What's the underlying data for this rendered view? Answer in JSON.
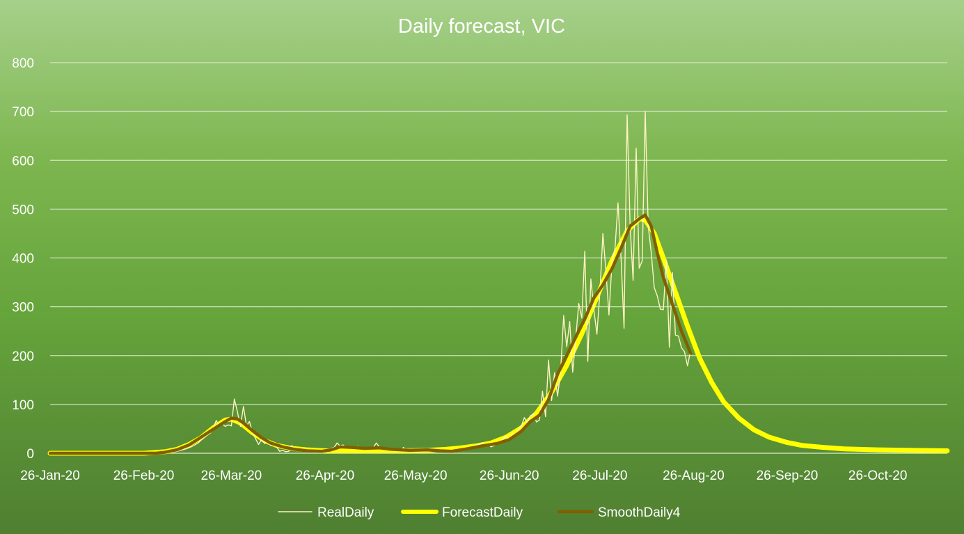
{
  "chart_data": {
    "type": "line",
    "title": "Daily forecast, VIC",
    "xlabel": "",
    "ylabel": "",
    "x_start": "26-Jan-20",
    "x_end": "18-Nov-20",
    "x_ticks": [
      "26-Jan-20",
      "26-Feb-20",
      "26-Mar-20",
      "26-Apr-20",
      "26-May-20",
      "26-Jun-20",
      "26-Jul-20",
      "26-Aug-20",
      "26-Sep-20",
      "26-Oct-20"
    ],
    "ylim": [
      0,
      800
    ],
    "y_ticks": [
      0,
      100,
      200,
      300,
      400,
      500,
      600,
      700,
      800
    ],
    "grid": true,
    "legend_position": "bottom",
    "series": [
      {
        "name": "RealDaily",
        "color": "#fff3c4",
        "points": [
          [
            "26-Jan-20",
            0
          ],
          [
            "20-Feb-20",
            0
          ],
          [
            "26-Feb-20",
            0
          ],
          [
            "01-Mar-20",
            1
          ],
          [
            "05-Mar-20",
            2
          ],
          [
            "08-Mar-20",
            4
          ],
          [
            "11-Mar-20",
            9
          ],
          [
            "13-Mar-20",
            14
          ],
          [
            "15-Mar-20",
            21
          ],
          [
            "17-Mar-20",
            33
          ],
          [
            "19-Mar-20",
            41
          ],
          [
            "20-Mar-20",
            52
          ],
          [
            "21-Mar-20",
            67
          ],
          [
            "22-Mar-20",
            56
          ],
          [
            "23-Mar-20",
            60
          ],
          [
            "24-Mar-20",
            55
          ],
          [
            "25-Mar-20",
            58
          ],
          [
            "26-Mar-20",
            56
          ],
          [
            "27-Mar-20",
            111
          ],
          [
            "28-Mar-20",
            85
          ],
          [
            "29-Mar-20",
            55
          ],
          [
            "30-Mar-20",
            96
          ],
          [
            "31-Mar-20",
            56
          ],
          [
            "01-Apr-20",
            65
          ],
          [
            "02-Apr-20",
            43
          ],
          [
            "03-Apr-20",
            30
          ],
          [
            "04-Apr-20",
            18
          ],
          [
            "05-Apr-20",
            28
          ],
          [
            "06-Apr-20",
            20
          ],
          [
            "07-Apr-20",
            26
          ],
          [
            "08-Apr-20",
            16
          ],
          [
            "09-Apr-20",
            20
          ],
          [
            "10-Apr-20",
            13
          ],
          [
            "11-Apr-20",
            4
          ],
          [
            "12-Apr-20",
            6
          ],
          [
            "13-Apr-20",
            3
          ],
          [
            "14-Apr-20",
            4
          ],
          [
            "15-Apr-20",
            16
          ],
          [
            "16-Apr-20",
            5
          ],
          [
            "17-Apr-20",
            10
          ],
          [
            "18-Apr-20",
            6
          ],
          [
            "19-Apr-20",
            4
          ],
          [
            "20-Apr-20",
            3
          ],
          [
            "21-Apr-20",
            4
          ],
          [
            "22-Apr-20",
            2
          ],
          [
            "23-Apr-20",
            3
          ],
          [
            "24-Apr-20",
            2
          ],
          [
            "25-Apr-20",
            3
          ],
          [
            "26-Apr-20",
            3
          ],
          [
            "27-Apr-20",
            6
          ],
          [
            "28-Apr-20",
            10
          ],
          [
            "29-Apr-20",
            12
          ],
          [
            "30-Apr-20",
            21
          ],
          [
            "01-May-20",
            15
          ],
          [
            "02-May-20",
            17
          ],
          [
            "03-May-20",
            12
          ],
          [
            "04-May-20",
            13
          ],
          [
            "05-May-20",
            9
          ],
          [
            "06-May-20",
            12
          ],
          [
            "07-May-20",
            14
          ],
          [
            "08-May-20",
            10
          ],
          [
            "09-May-20",
            11
          ],
          [
            "10-May-20",
            9
          ],
          [
            "11-May-20",
            10
          ],
          [
            "12-May-20",
            12
          ],
          [
            "13-May-20",
            21
          ],
          [
            "14-May-20",
            13
          ],
          [
            "15-May-20",
            7
          ],
          [
            "16-May-20",
            8
          ],
          [
            "17-May-20",
            6
          ],
          [
            "18-May-20",
            7
          ],
          [
            "19-May-20",
            5
          ],
          [
            "20-May-20",
            9
          ],
          [
            "21-May-20",
            6
          ],
          [
            "22-May-20",
            12
          ],
          [
            "23-May-20",
            5
          ],
          [
            "24-May-20",
            7
          ],
          [
            "25-May-20",
            6
          ],
          [
            "26-May-20",
            8
          ],
          [
            "27-May-20",
            7
          ],
          [
            "28-May-20",
            8
          ],
          [
            "29-May-20",
            6
          ],
          [
            "30-May-20",
            7
          ],
          [
            "31-May-20",
            9
          ],
          [
            "01-Jun-20",
            6
          ],
          [
            "02-Jun-20",
            7
          ],
          [
            "03-Jun-20",
            4
          ],
          [
            "04-Jun-20",
            6
          ],
          [
            "05-Jun-20",
            3
          ],
          [
            "06-Jun-20",
            5
          ],
          [
            "07-Jun-20",
            4
          ],
          [
            "08-Jun-20",
            6
          ],
          [
            "09-Jun-20",
            5
          ],
          [
            "10-Jun-20",
            7
          ],
          [
            "11-Jun-20",
            8
          ],
          [
            "12-Jun-20",
            10
          ],
          [
            "13-Jun-20",
            12
          ],
          [
            "14-Jun-20",
            14
          ],
          [
            "15-Jun-20",
            16
          ],
          [
            "16-Jun-20",
            18
          ],
          [
            "17-Jun-20",
            21
          ],
          [
            "18-Jun-20",
            17
          ],
          [
            "19-Jun-20",
            18
          ],
          [
            "20-Jun-20",
            13
          ],
          [
            "21-Jun-20",
            16
          ],
          [
            "22-Jun-20",
            19
          ],
          [
            "23-Jun-20",
            23
          ],
          [
            "24-Jun-20",
            30
          ],
          [
            "25-Jun-20",
            35
          ],
          [
            "26-Jun-20",
            28
          ],
          [
            "27-Jun-20",
            40
          ],
          [
            "28-Jun-20",
            34
          ],
          [
            "29-Jun-20",
            48
          ],
          [
            "30-Jun-20",
            56
          ],
          [
            "01-Jul-20",
            73
          ],
          [
            "02-Jul-20",
            62
          ],
          [
            "03-Jul-20",
            77
          ],
          [
            "04-Jul-20",
            80
          ],
          [
            "05-Jul-20",
            64
          ],
          [
            "06-Jul-20",
            68
          ],
          [
            "07-Jul-20",
            127
          ],
          [
            "08-Jul-20",
            75
          ],
          [
            "09-Jul-20",
            191
          ],
          [
            "10-Jul-20",
            108
          ],
          [
            "11-Jul-20",
            165
          ],
          [
            "12-Jul-20",
            117
          ],
          [
            "13-Jul-20",
            168
          ],
          [
            "14-Jul-20",
            282
          ],
          [
            "15-Jul-20",
            218
          ],
          [
            "16-Jul-20",
            270
          ],
          [
            "17-Jul-20",
            166
          ],
          [
            "18-Jul-20",
            236
          ],
          [
            "19-Jul-20",
            307
          ],
          [
            "20-Jul-20",
            277
          ],
          [
            "21-Jul-20",
            414
          ],
          [
            "22-Jul-20",
            188
          ],
          [
            "23-Jul-20",
            357
          ],
          [
            "24-Jul-20",
            294
          ],
          [
            "25-Jul-20",
            244
          ],
          [
            "26-Jul-20",
            330
          ],
          [
            "27-Jul-20",
            450
          ],
          [
            "28-Jul-20",
            372
          ],
          [
            "29-Jul-20",
            283
          ],
          [
            "30-Jul-20",
            393
          ],
          [
            "31-Jul-20",
            420
          ],
          [
            "01-Aug-20",
            513
          ],
          [
            "02-Aug-20",
            399
          ],
          [
            "03-Aug-20",
            256
          ],
          [
            "04-Aug-20",
            693
          ],
          [
            "05-Aug-20",
            466
          ],
          [
            "06-Aug-20",
            354
          ],
          [
            "07-Aug-20",
            625
          ],
          [
            "08-Aug-20",
            379
          ],
          [
            "09-Aug-20",
            394
          ],
          [
            "10-Aug-20",
            700
          ],
          [
            "11-Aug-20",
            466
          ],
          [
            "12-Aug-20",
            410
          ],
          [
            "13-Aug-20",
            339
          ],
          [
            "14-Aug-20",
            322
          ],
          [
            "15-Aug-20",
            295
          ],
          [
            "16-Aug-20",
            294
          ],
          [
            "17-Aug-20",
            395
          ],
          [
            "18-Aug-20",
            217
          ],
          [
            "19-Aug-20",
            370
          ],
          [
            "20-Aug-20",
            242
          ],
          [
            "21-Aug-20",
            240
          ],
          [
            "22-Aug-20",
            216
          ],
          [
            "23-Aug-20",
            208
          ],
          [
            "24-Aug-20",
            179
          ],
          [
            "25-Aug-20",
            210
          ]
        ]
      },
      {
        "name": "ForecastDaily",
        "color": "#ffff00",
        "points": [
          [
            "26-Jan-20",
            0
          ],
          [
            "26-Feb-20",
            0
          ],
          [
            "04-Mar-20",
            3
          ],
          [
            "08-Mar-20",
            8
          ],
          [
            "12-Mar-20",
            18
          ],
          [
            "16-Mar-20",
            32
          ],
          [
            "20-Mar-20",
            52
          ],
          [
            "24-Mar-20",
            68
          ],
          [
            "26-Mar-20",
            70
          ],
          [
            "29-Mar-20",
            62
          ],
          [
            "02-Apr-20",
            42
          ],
          [
            "06-Apr-20",
            26
          ],
          [
            "10-Apr-20",
            16
          ],
          [
            "15-Apr-20",
            10
          ],
          [
            "20-Apr-20",
            7
          ],
          [
            "26-Apr-20",
            5
          ],
          [
            "01-May-20",
            5
          ],
          [
            "10-May-20",
            5
          ],
          [
            "20-May-20",
            5
          ],
          [
            "30-May-20",
            6
          ],
          [
            "05-Jun-20",
            8
          ],
          [
            "10-Jun-20",
            11
          ],
          [
            "15-Jun-20",
            15
          ],
          [
            "20-Jun-20",
            21
          ],
          [
            "25-Jun-20",
            33
          ],
          [
            "30-Jun-20",
            52
          ],
          [
            "05-Jul-20",
            82
          ],
          [
            "10-Jul-20",
            125
          ],
          [
            "15-Jul-20",
            180
          ],
          [
            "20-Jul-20",
            245
          ],
          [
            "25-Jul-20",
            320
          ],
          [
            "30-Jul-20",
            395
          ],
          [
            "04-Aug-20",
            455
          ],
          [
            "08-Aug-20",
            480
          ],
          [
            "10-Aug-20",
            478
          ],
          [
            "13-Aug-20",
            450
          ],
          [
            "16-Aug-20",
            400
          ],
          [
            "20-Aug-20",
            330
          ],
          [
            "24-Aug-20",
            260
          ],
          [
            "28-Aug-20",
            195
          ],
          [
            "01-Sep-20",
            145
          ],
          [
            "05-Sep-20",
            105
          ],
          [
            "10-Sep-20",
            72
          ],
          [
            "15-Sep-20",
            48
          ],
          [
            "20-Sep-20",
            33
          ],
          [
            "26-Sep-20",
            22
          ],
          [
            "01-Oct-20",
            16
          ],
          [
            "08-Oct-20",
            12
          ],
          [
            "15-Oct-20",
            9
          ],
          [
            "26-Oct-20",
            7
          ],
          [
            "05-Nov-20",
            6
          ],
          [
            "18-Nov-20",
            5
          ]
        ]
      },
      {
        "name": "SmoothDaily4",
        "color": "#806000",
        "points": [
          [
            "26-Jan-20",
            0
          ],
          [
            "26-Feb-20",
            0
          ],
          [
            "01-Mar-20",
            0
          ],
          [
            "04-Mar-20",
            2
          ],
          [
            "08-Mar-20",
            7
          ],
          [
            "12-Mar-20",
            17
          ],
          [
            "16-Mar-20",
            33
          ],
          [
            "19-Mar-20",
            45
          ],
          [
            "22-Mar-20",
            57
          ],
          [
            "24-Mar-20",
            65
          ],
          [
            "26-Mar-20",
            72
          ],
          [
            "28-Mar-20",
            70
          ],
          [
            "30-Mar-20",
            62
          ],
          [
            "02-Apr-20",
            46
          ],
          [
            "05-Apr-20",
            32
          ],
          [
            "08-Apr-20",
            21
          ],
          [
            "12-Apr-20",
            13
          ],
          [
            "16-Apr-20",
            8
          ],
          [
            "20-Apr-20",
            5
          ],
          [
            "25-Apr-20",
            4
          ],
          [
            "28-Apr-20",
            7
          ],
          [
            "01-May-20",
            13
          ],
          [
            "05-May-20",
            12
          ],
          [
            "09-May-20",
            10
          ],
          [
            "14-May-20",
            11
          ],
          [
            "18-May-20",
            8
          ],
          [
            "24-May-20",
            6
          ],
          [
            "30-May-20",
            7
          ],
          [
            "03-Jun-20",
            5
          ],
          [
            "07-Jun-20",
            4
          ],
          [
            "12-Jun-20",
            9
          ],
          [
            "17-Jun-20",
            15
          ],
          [
            "22-Jun-20",
            20
          ],
          [
            "26-Jun-20",
            28
          ],
          [
            "30-Jun-20",
            45
          ],
          [
            "03-Jul-20",
            65
          ],
          [
            "06-Jul-20",
            78
          ],
          [
            "09-Jul-20",
            110
          ],
          [
            "12-Jul-20",
            162
          ],
          [
            "15-Jul-20",
            200
          ],
          [
            "18-Jul-20",
            238
          ],
          [
            "21-Jul-20",
            275
          ],
          [
            "24-Jul-20",
            318
          ],
          [
            "27-Jul-20",
            345
          ],
          [
            "30-Jul-20",
            378
          ],
          [
            "02-Aug-20",
            420
          ],
          [
            "05-Aug-20",
            465
          ],
          [
            "08-Aug-20",
            480
          ],
          [
            "10-Aug-20",
            488
          ],
          [
            "12-Aug-20",
            465
          ],
          [
            "14-Aug-20",
            410
          ],
          [
            "16-Aug-20",
            360
          ],
          [
            "19-Aug-20",
            305
          ],
          [
            "22-Aug-20",
            250
          ],
          [
            "25-Aug-20",
            205
          ]
        ]
      }
    ]
  }
}
